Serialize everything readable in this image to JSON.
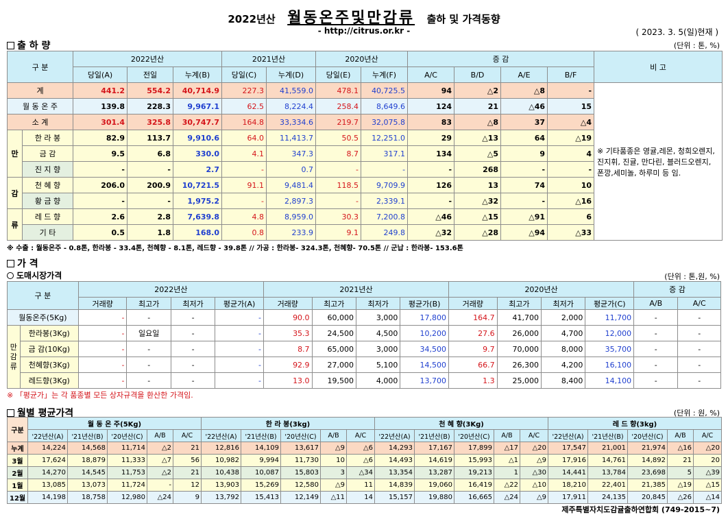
{
  "header": {
    "year": "2022년산",
    "main": "월동온주및만감류",
    "sub": "출하 및 가격동향",
    "url": "- http://citrus.or.kr -",
    "asof": "( 2023. 3. 5(일)현재 )"
  },
  "shipment": {
    "section": "출 하 량",
    "unit": "(단위 : 톤, %)",
    "h_label": "구     분",
    "h_2022": "2022년산",
    "h_2021": "2021년산",
    "h_2020": "2020년산",
    "h_diff": "증     감",
    "h_note": "비 고",
    "sub": [
      "당일(A)",
      "전일",
      "누계(B)",
      "당일(C)",
      "누계(D)",
      "당일(E)",
      "누계(F)",
      "A/C",
      "B/D",
      "A/E",
      "B/F"
    ],
    "remark": "※ 기타품종은 영귤,레몬, 청희오렌지, 진지휘, 진귤, 만다린, 블러드오렌지, 폰깡,세미놀, 하루미 등 임.",
    "side_label": [
      "만",
      "감",
      "류"
    ],
    "rows": [
      {
        "name": "계",
        "v": [
          "441.2",
          "554.2",
          "40,714.9",
          "227.3",
          "41,559.0",
          "478.1",
          "40,725.5",
          "94",
          "△2",
          "△8",
          "-"
        ]
      },
      {
        "name": "월 동 온 주",
        "v": [
          "139.8",
          "228.3",
          "9,967.1",
          "62.5",
          "8,224.4",
          "258.4",
          "8,649.6",
          "124",
          "21",
          "△46",
          "15"
        ]
      },
      {
        "name": "소     계",
        "v": [
          "301.4",
          "325.8",
          "30,747.7",
          "164.8",
          "33,334.6",
          "219.7",
          "32,075.8",
          "83",
          "△8",
          "37",
          "△4"
        ]
      },
      {
        "name": "한 라 봉",
        "v": [
          "82.9",
          "113.7",
          "9,910.6",
          "64.0",
          "11,413.7",
          "50.5",
          "12,251.0",
          "29",
          "△13",
          "64",
          "△19"
        ]
      },
      {
        "name": "금   감",
        "v": [
          "9.5",
          "6.8",
          "330.0",
          "4.1",
          "347.3",
          "8.7",
          "317.1",
          "134",
          "△5",
          "9",
          "4"
        ]
      },
      {
        "name": "진 지 향",
        "v": [
          "-",
          "-",
          "2.7",
          "-",
          "0.7",
          "-",
          "-",
          "-",
          "268",
          "-",
          "-"
        ]
      },
      {
        "name": "천 혜 향",
        "v": [
          "206.0",
          "200.9",
          "10,721.5",
          "91.1",
          "9,481.4",
          "118.5",
          "9,709.9",
          "126",
          "13",
          "74",
          "10"
        ]
      },
      {
        "name": "황 금 향",
        "v": [
          "-",
          "-",
          "1,975.2",
          "-",
          "2,897.3",
          "-",
          "2,339.1",
          "-",
          "△32",
          "-",
          "△16"
        ]
      },
      {
        "name": "레 드 향",
        "v": [
          "2.6",
          "2.8",
          "7,639.8",
          "4.8",
          "8,959.0",
          "30.3",
          "7,200.8",
          "△46",
          "△15",
          "△91",
          "6"
        ]
      },
      {
        "name": "기     타",
        "v": [
          "0.5",
          "1.8",
          "168.0",
          "0.8",
          "233.9",
          "9.1",
          "249.8",
          "△32",
          "△28",
          "△94",
          "△33"
        ]
      }
    ],
    "footnote": "※ 수출 : 월동온주 - 0.8톤, 한라봉 - 33.4톤, 천혜향 - 8.1톤, 레드향 - 39.8톤  //  가공  :  한라봉- 324.3톤, 천혜향- 70.5톤  //  군납 : 한라봉- 153.6톤"
  },
  "price": {
    "section": "가       격",
    "subsection": "도매시장가격",
    "unit": "(단위 : 톤,원, %)",
    "h_label": "구     분",
    "h_2022": "2022년산",
    "h_2021": "2021년산",
    "h_2020": "2020년산",
    "h_diff": "증     감",
    "sub": [
      "거래량",
      "최고가",
      "최저가",
      "평균가(A)",
      "거래량",
      "최고가",
      "최저가",
      "평균가(B)",
      "거래량",
      "최고가",
      "최저가",
      "평균가(C)",
      "A/B",
      "A/C"
    ],
    "side_label": [
      "만",
      "감",
      "류"
    ],
    "rows": [
      {
        "name": "월동온주(5Kg)",
        "v": [
          "-",
          "-",
          "-",
          "-",
          "90.0",
          "60,000",
          "3,000",
          "17,800",
          "164.7",
          "41,700",
          "2,000",
          "11,700",
          "-",
          "-"
        ]
      },
      {
        "name": "한라봉(3Kg)",
        "v": [
          "-",
          "일요일",
          "-",
          "-",
          "35.3",
          "24,500",
          "4,500",
          "10,200",
          "27.6",
          "26,000",
          "4,700",
          "12,000",
          "-",
          "-"
        ]
      },
      {
        "name": "금 감(10Kg)",
        "v": [
          "-",
          "-",
          "-",
          "-",
          "8.7",
          "65,000",
          "3,000",
          "34,500",
          "9.7",
          "70,000",
          "8,000",
          "35,700",
          "-",
          "-"
        ]
      },
      {
        "name": "천혜향(3Kg)",
        "v": [
          "-",
          "-",
          "-",
          "-",
          "92.9",
          "27,000",
          "5,100",
          "14,500",
          "66.7",
          "26,300",
          "4,200",
          "16,100",
          "-",
          "-"
        ]
      },
      {
        "name": "레드향(3Kg)",
        "v": [
          "-",
          "-",
          "-",
          "-",
          "13.0",
          "19,500",
          "4,000",
          "13,700",
          "1.3",
          "25,000",
          "8,400",
          "14,100",
          "-",
          "-"
        ]
      }
    ],
    "footnote": "※ 「평균가」는 각 품종별 모든 상자규격을 환산한 가격임."
  },
  "monthly": {
    "section": "월별 평균가격",
    "unit": "(단위 : 원, %)",
    "h_label": "구분",
    "groups": [
      "월 동 온 주(5Kg)",
      "한 라 봉(3kg)",
      "천 혜 향(3Kg)",
      "레 드 향(3kg)"
    ],
    "sub": [
      "'22년산(A)",
      "'21년산(B)",
      "'20년산(C)",
      "A/B",
      "A/C"
    ],
    "rows": [
      {
        "name": "누계",
        "v": [
          "14,224",
          "14,568",
          "11,714",
          "△2",
          "21",
          "12,816",
          "14,109",
          "13,617",
          "△9",
          "△6",
          "14,293",
          "17,167",
          "17,899",
          "△17",
          "△20",
          "17,547",
          "21,001",
          "21,974",
          "△16",
          "△20"
        ]
      },
      {
        "name": "3월",
        "v": [
          "17,624",
          "18,879",
          "11,333",
          "△7",
          "56",
          "10,982",
          "9,994",
          "11,730",
          "10",
          "△6",
          "14,493",
          "14,619",
          "15,993",
          "△1",
          "△9",
          "17,916",
          "14,761",
          "14,892",
          "21",
          "20"
        ]
      },
      {
        "name": "2월",
        "v": [
          "14,270",
          "14,545",
          "11,753",
          "△2",
          "21",
          "10,438",
          "10,087",
          "15,803",
          "3",
          "△34",
          "13,354",
          "13,287",
          "19,213",
          "1",
          "△30",
          "14,441",
          "13,784",
          "23,698",
          "5",
          "△39"
        ]
      },
      {
        "name": "1월",
        "v": [
          "13,085",
          "13,073",
          "11,724",
          "-",
          "12",
          "13,903",
          "15,269",
          "12,580",
          "△9",
          "11",
          "14,839",
          "19,060",
          "16,419",
          "△22",
          "△10",
          "18,210",
          "22,401",
          "21,385",
          "△19",
          "△15"
        ]
      },
      {
        "name": "12월",
        "v": [
          "14,198",
          "18,758",
          "12,980",
          "△24",
          "9",
          "13,792",
          "15,413",
          "12,149",
          "△11",
          "14",
          "15,157",
          "19,880",
          "16,665",
          "△24",
          "△9",
          "17,911",
          "24,135",
          "20,845",
          "△26",
          "△14"
        ]
      }
    ]
  },
  "footer": "제주특별자치도감귤출하연합회 (749-2015~7)"
}
